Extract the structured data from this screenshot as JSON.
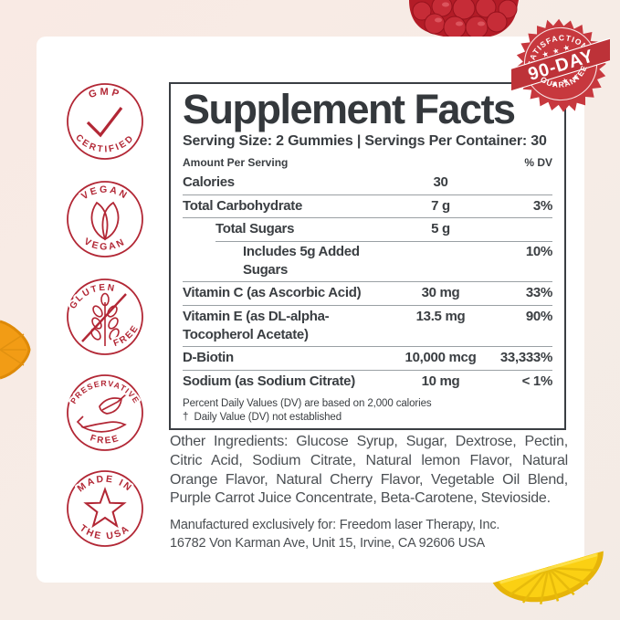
{
  "colors": {
    "cream_background": "#f7ece5",
    "card_white": "#ffffff",
    "badge_red": "#b22735",
    "stamp_red": "#c63b41",
    "ink": "#3a3e42",
    "bar_dark": "#2f3438"
  },
  "stamp": {
    "top": "SATISFACTION",
    "stars_top": "★ ★ ★",
    "middle": "90-DAY",
    "stars_bottom": "★ ★ ★",
    "bottom": "GUARANTEE"
  },
  "badges": [
    {
      "top": "GMP",
      "bottom": "CERTIFIED",
      "icon": "checkmark-icon"
    },
    {
      "top": "VEGAN",
      "bottom": "VEGAN",
      "icon": "leaves-icon"
    },
    {
      "top": "GLUTEN",
      "bottom": "FREE",
      "icon": "wheat-slash-icon"
    },
    {
      "top": "PRESERVATIVE",
      "bottom": "FREE",
      "icon": "hand-leaf-icon"
    },
    {
      "top": "MADE IN",
      "bottom": "THE USA",
      "icon": "star-icon"
    }
  ],
  "panel": {
    "title": "Supplement Facts",
    "serving_line": "Serving Size: 2 Gummies | Servings Per Container: 30",
    "header": {
      "left": "Amount Per Serving",
      "right": "% DV"
    },
    "rows": [
      {
        "name": "Calories",
        "amount": "30",
        "dv": "",
        "indent": 0
      },
      {
        "name": "Total Carbohydrate",
        "amount": "7 g",
        "dv": "3%",
        "indent": 0
      },
      {
        "name": "Total Sugars",
        "amount": "5 g",
        "dv": "",
        "indent": 1
      },
      {
        "name": "Includes 5g Added Sugars",
        "amount": "",
        "dv": "10%",
        "indent": 2,
        "sep": "indent"
      },
      {
        "name": "Vitamin C (as Ascorbic Acid)",
        "amount": "30 mg",
        "dv": "33%",
        "indent": 0
      },
      {
        "name": "Vitamin E (as DL-alpha-Tocopherol Acetate)",
        "amount": "13.5 mg",
        "dv": "90%",
        "indent": 0
      },
      {
        "name": "D-Biotin",
        "amount": "10,000 mcg",
        "dv": "33,333%",
        "indent": 0
      },
      {
        "name": "Sodium (as Sodium Citrate)",
        "amount": "10 mg",
        "dv": "< 1%",
        "indent": 0
      }
    ],
    "footnotes": [
      "Percent Daily Values (DV) are based on 2,000 calories",
      "†  Daily Value (DV) not established"
    ]
  },
  "other_ingredients": "Other Ingredients: Glucose Syrup, Sugar, Dextrose, Pectin, Citric Acid, Sodium Citrate, Natural lemon Flavor, Natural Orange Flavor, Natural Cherry Flavor, Vegetable Oil Blend, Purple Carrot Juice Concentrate, Beta-Carotene, Stevioside.",
  "manufactured": [
    "Manufactured exclusively for: Freedom laser Therapy, Inc.",
    "16782 Von Karman Ave, Unit 15, Irvine, CA 92606 USA"
  ]
}
